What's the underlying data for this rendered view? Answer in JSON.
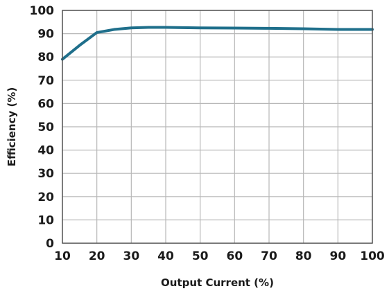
{
  "chart_data": {
    "type": "line",
    "title": "",
    "xlabel": "Output Current (%)",
    "ylabel": "Efficiency (%)",
    "xlim": [
      10,
      100
    ],
    "ylim": [
      0,
      100
    ],
    "x_ticks": [
      10,
      20,
      30,
      40,
      50,
      60,
      70,
      80,
      90,
      100
    ],
    "y_ticks": [
      0,
      10,
      20,
      30,
      40,
      50,
      60,
      70,
      80,
      90,
      100
    ],
    "grid": true,
    "series": [
      {
        "color": "#1f6f8b",
        "x": [
          10,
          15,
          20,
          22,
          25,
          30,
          35,
          40,
          50,
          60,
          70,
          80,
          90,
          100
        ],
        "y": [
          79,
          85,
          90.5,
          91,
          91.8,
          92.5,
          92.7,
          92.7,
          92.5,
          92.4,
          92.3,
          92.1,
          91.8,
          91.8
        ]
      }
    ],
    "colors": {
      "line": "#1f6f8b",
      "grid": "#b7b7b7",
      "frame": "#4a4a4a",
      "text": "#1a1a1a"
    }
  }
}
